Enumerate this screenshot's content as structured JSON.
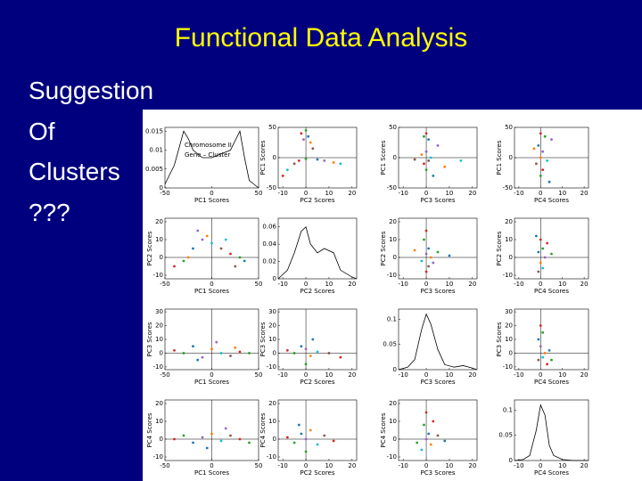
{
  "title": "Functional Data Analysis",
  "bullets": [
    "Suggestion",
    "Of",
    "Clusters",
    "???"
  ],
  "figure": {
    "colors": [
      "#d62728",
      "#2ca02c",
      "#1f77b4",
      "#9467bd",
      "#ff7f0e",
      "#17becf",
      "#8c564b"
    ],
    "legend": [
      "Chromosome II",
      "Gene – Cluster"
    ],
    "x_axes": [
      {
        "label": "PC1 Scores",
        "lim": [
          -50,
          50
        ],
        "ticks": [
          -50,
          0,
          50
        ]
      },
      {
        "label": "PC2 Scores",
        "lim": [
          -12,
          22
        ],
        "ticks": [
          -10,
          0,
          10,
          20
        ]
      },
      {
        "label": "PC3 Scores",
        "lim": [
          -12,
          22
        ],
        "ticks": [
          -10,
          0,
          10,
          20
        ]
      },
      {
        "label": "PC4 Scores",
        "lim": [
          -12,
          22
        ],
        "ticks": [
          -10,
          0,
          10,
          20
        ]
      }
    ],
    "y_axes": [
      {
        "label": "PC1 Scores",
        "lim": [
          -50,
          50
        ],
        "ticks": [
          -50,
          0,
          50
        ]
      },
      {
        "label": "PC2 Scores",
        "lim": [
          -12,
          22
        ],
        "ticks": [
          -10,
          0,
          10,
          20
        ]
      },
      {
        "label": "PC3 Scores",
        "lim": [
          -12,
          32
        ],
        "ticks": [
          -10,
          0,
          10,
          20,
          30
        ]
      },
      {
        "label": "PC4 Scores",
        "lim": [
          -12,
          22
        ],
        "ticks": [
          -10,
          0,
          10,
          20
        ]
      }
    ],
    "densities": [
      {
        "ylim": [
          0,
          0.016
        ],
        "yticks": [
          0,
          0.005,
          0.01,
          0.015
        ],
        "x": [
          -50,
          -40,
          -30,
          -25,
          -20,
          -10,
          0,
          10,
          20,
          30,
          35,
          40,
          50
        ],
        "y": [
          0.001,
          0.006,
          0.015,
          0.013,
          0.01,
          0.008,
          0.008,
          0.009,
          0.01,
          0.015,
          0.008,
          0.002,
          0
        ]
      },
      {
        "ylim": [
          0,
          0.07
        ],
        "yticks": [
          0,
          0.02,
          0.04,
          0.06
        ],
        "x": [
          -12,
          -8,
          -5,
          -2,
          0,
          2,
          5,
          8,
          12,
          15,
          20,
          22
        ],
        "y": [
          0,
          0.01,
          0.03,
          0.055,
          0.06,
          0.04,
          0.03,
          0.035,
          0.03,
          0.01,
          0.002,
          0
        ]
      },
      {
        "ylim": [
          0,
          0.12
        ],
        "yticks": [
          0,
          0.05,
          0.1
        ],
        "x": [
          -12,
          -8,
          -5,
          -2,
          0,
          2,
          5,
          8,
          12,
          16,
          20,
          22
        ],
        "y": [
          0,
          0.005,
          0.02,
          0.08,
          0.11,
          0.09,
          0.04,
          0.01,
          0.005,
          0.008,
          0.003,
          0
        ]
      },
      {
        "ylim": [
          0,
          0.12
        ],
        "yticks": [
          0,
          0.05,
          0.1
        ],
        "x": [
          -12,
          -8,
          -5,
          -2,
          0,
          2,
          4,
          6,
          10,
          15,
          20,
          22
        ],
        "y": [
          0,
          0.002,
          0.01,
          0.06,
          0.11,
          0.09,
          0.03,
          0.01,
          0.002,
          0,
          0,
          0
        ]
      }
    ],
    "scatters": [
      {
        "row": 0,
        "col": 1,
        "points": [
          [
            -2,
            40
          ],
          [
            0,
            45
          ],
          [
            1,
            35
          ],
          [
            -1,
            30
          ],
          [
            2,
            25
          ],
          [
            -8,
            -20
          ],
          [
            -5,
            -10
          ],
          [
            -3,
            -5
          ],
          [
            0,
            -2
          ],
          [
            5,
            -3
          ],
          [
            8,
            -5
          ],
          [
            12,
            -8
          ],
          [
            15,
            -10
          ],
          [
            3,
            15
          ],
          [
            -10,
            -30
          ]
        ]
      },
      {
        "row": 0,
        "col": 2,
        "points": [
          [
            0,
            40
          ],
          [
            -1,
            35
          ],
          [
            1,
            30
          ],
          [
            0,
            10
          ],
          [
            -2,
            5
          ],
          [
            2,
            0
          ],
          [
            1,
            -5
          ],
          [
            -1,
            -10
          ],
          [
            0,
            -20
          ],
          [
            3,
            -30
          ],
          [
            5,
            20
          ],
          [
            8,
            -15
          ],
          [
            15,
            -5
          ],
          [
            -5,
            -3
          ]
        ]
      },
      {
        "row": 0,
        "col": 3,
        "points": [
          [
            0,
            40
          ],
          [
            2,
            35
          ],
          [
            -1,
            20
          ],
          [
            1,
            10
          ],
          [
            0,
            0
          ],
          [
            3,
            -5
          ],
          [
            -2,
            -10
          ],
          [
            1,
            -20
          ],
          [
            0,
            -30
          ],
          [
            4,
            -40
          ],
          [
            5,
            30
          ],
          [
            -3,
            15
          ]
        ]
      },
      {
        "row": 1,
        "col": 0,
        "points": [
          [
            -40,
            -5
          ],
          [
            -30,
            -2
          ],
          [
            -20,
            5
          ],
          [
            -10,
            10
          ],
          [
            -5,
            12
          ],
          [
            0,
            8
          ],
          [
            10,
            5
          ],
          [
            20,
            2
          ],
          [
            30,
            0
          ],
          [
            35,
            -2
          ],
          [
            -15,
            15
          ],
          [
            -25,
            0
          ],
          [
            15,
            10
          ],
          [
            25,
            -5
          ]
        ]
      },
      {
        "row": 1,
        "col": 2,
        "points": [
          [
            0,
            15
          ],
          [
            -1,
            10
          ],
          [
            1,
            5
          ],
          [
            0,
            2
          ],
          [
            2,
            0
          ],
          [
            -2,
            -2
          ],
          [
            1,
            -5
          ],
          [
            0,
            -8
          ],
          [
            5,
            3
          ],
          [
            10,
            1
          ],
          [
            3,
            -3
          ],
          [
            -5,
            4
          ]
        ]
      },
      {
        "row": 1,
        "col": 3,
        "points": [
          [
            0,
            10
          ],
          [
            1,
            5
          ],
          [
            -1,
            3
          ],
          [
            2,
            0
          ],
          [
            0,
            -3
          ],
          [
            1,
            -6
          ],
          [
            -1,
            -8
          ],
          [
            3,
            8
          ],
          [
            5,
            2
          ],
          [
            -2,
            12
          ]
        ]
      },
      {
        "row": 2,
        "col": 0,
        "points": [
          [
            -40,
            2
          ],
          [
            -30,
            0
          ],
          [
            -20,
            5
          ],
          [
            -10,
            -3
          ],
          [
            0,
            3
          ],
          [
            10,
            0
          ],
          [
            20,
            -2
          ],
          [
            30,
            1
          ],
          [
            40,
            0
          ],
          [
            -15,
            -5
          ],
          [
            5,
            8
          ],
          [
            25,
            4
          ]
        ]
      },
      {
        "row": 2,
        "col": 1,
        "points": [
          [
            -8,
            2
          ],
          [
            -5,
            0
          ],
          [
            -2,
            5
          ],
          [
            0,
            3
          ],
          [
            2,
            -2
          ],
          [
            5,
            1
          ],
          [
            10,
            0
          ],
          [
            15,
            -3
          ],
          [
            0,
            -8
          ],
          [
            3,
            10
          ]
        ]
      },
      {
        "row": 2,
        "col": 3,
        "points": [
          [
            0,
            20
          ],
          [
            1,
            15
          ],
          [
            -1,
            10
          ],
          [
            0,
            5
          ],
          [
            2,
            0
          ],
          [
            1,
            -3
          ],
          [
            -1,
            -5
          ],
          [
            3,
            -8
          ],
          [
            5,
            -5
          ],
          [
            4,
            2
          ]
        ]
      },
      {
        "row": 3,
        "col": 0,
        "points": [
          [
            -40,
            0
          ],
          [
            -30,
            2
          ],
          [
            -20,
            -2
          ],
          [
            -10,
            1
          ],
          [
            0,
            3
          ],
          [
            10,
            -1
          ],
          [
            20,
            2
          ],
          [
            30,
            0
          ],
          [
            40,
            -2
          ],
          [
            -5,
            -5
          ],
          [
            15,
            6
          ]
        ]
      },
      {
        "row": 3,
        "col": 1,
        "points": [
          [
            -8,
            1
          ],
          [
            -5,
            -2
          ],
          [
            -2,
            3
          ],
          [
            0,
            0
          ],
          [
            2,
            5
          ],
          [
            5,
            -3
          ],
          [
            8,
            2
          ],
          [
            12,
            -1
          ],
          [
            0,
            -7
          ],
          [
            -3,
            8
          ]
        ]
      },
      {
        "row": 3,
        "col": 2,
        "points": [
          [
            0,
            15
          ],
          [
            -1,
            8
          ],
          [
            1,
            3
          ],
          [
            0,
            0
          ],
          [
            2,
            -3
          ],
          [
            -2,
            -6
          ],
          [
            5,
            2
          ],
          [
            3,
            10
          ],
          [
            -4,
            -2
          ],
          [
            8,
            -1
          ]
        ]
      }
    ]
  }
}
